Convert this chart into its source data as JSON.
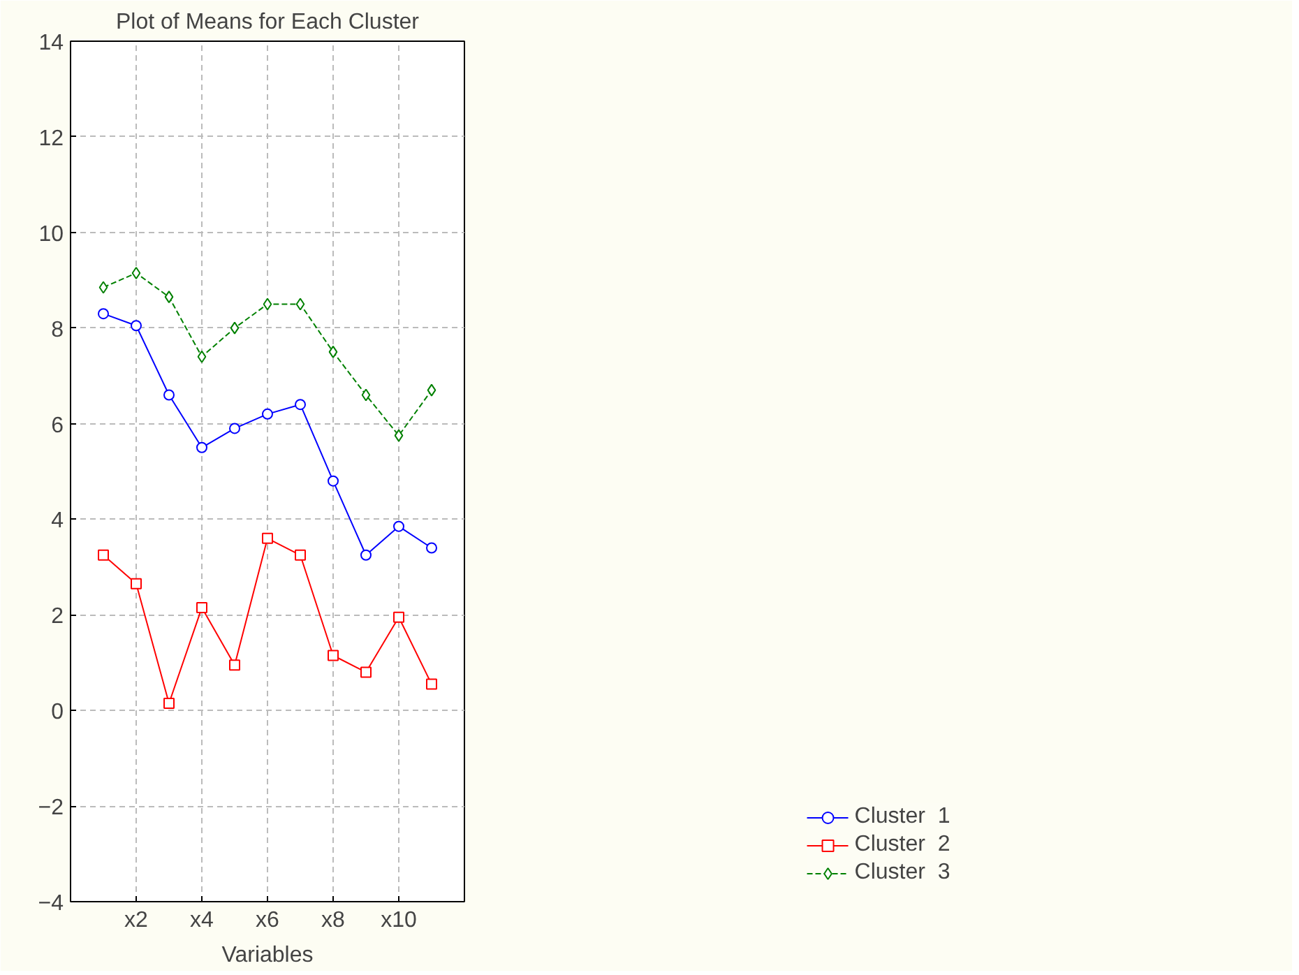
{
  "chart_data": {
    "type": "line",
    "title": "Plot of Means for Each Cluster",
    "xlabel": "Variables",
    "categories": [
      null,
      "x2",
      null,
      "x4",
      null,
      "x6",
      null,
      "x8",
      null,
      "x10",
      null
    ],
    "ylim": [
      -4,
      14
    ],
    "yticks": [
      -4,
      -2,
      0,
      2,
      4,
      6,
      8,
      10,
      12,
      14
    ],
    "grid": true,
    "legend": "bottom right",
    "series": [
      {
        "name": "Cluster  1",
        "color": "#0000ff",
        "marker": "circle",
        "line_style": "solid",
        "values": [
          8.3,
          8.05,
          6.6,
          5.5,
          5.9,
          6.2,
          6.4,
          4.8,
          3.25,
          3.85,
          3.4
        ]
      },
      {
        "name": "Cluster  2",
        "color": "#ff0000",
        "marker": "square",
        "line_style": "solid",
        "values": [
          3.25,
          2.65,
          0.15,
          2.15,
          0.95,
          3.6,
          3.25,
          1.15,
          0.8,
          1.95,
          0.55
        ]
      },
      {
        "name": "Cluster  3",
        "color": "#008000",
        "marker": "diamond",
        "line_style": "dashed",
        "values": [
          8.85,
          9.15,
          8.65,
          7.4,
          8.0,
          8.5,
          8.5,
          7.5,
          6.6,
          5.75,
          6.7
        ]
      }
    ]
  }
}
